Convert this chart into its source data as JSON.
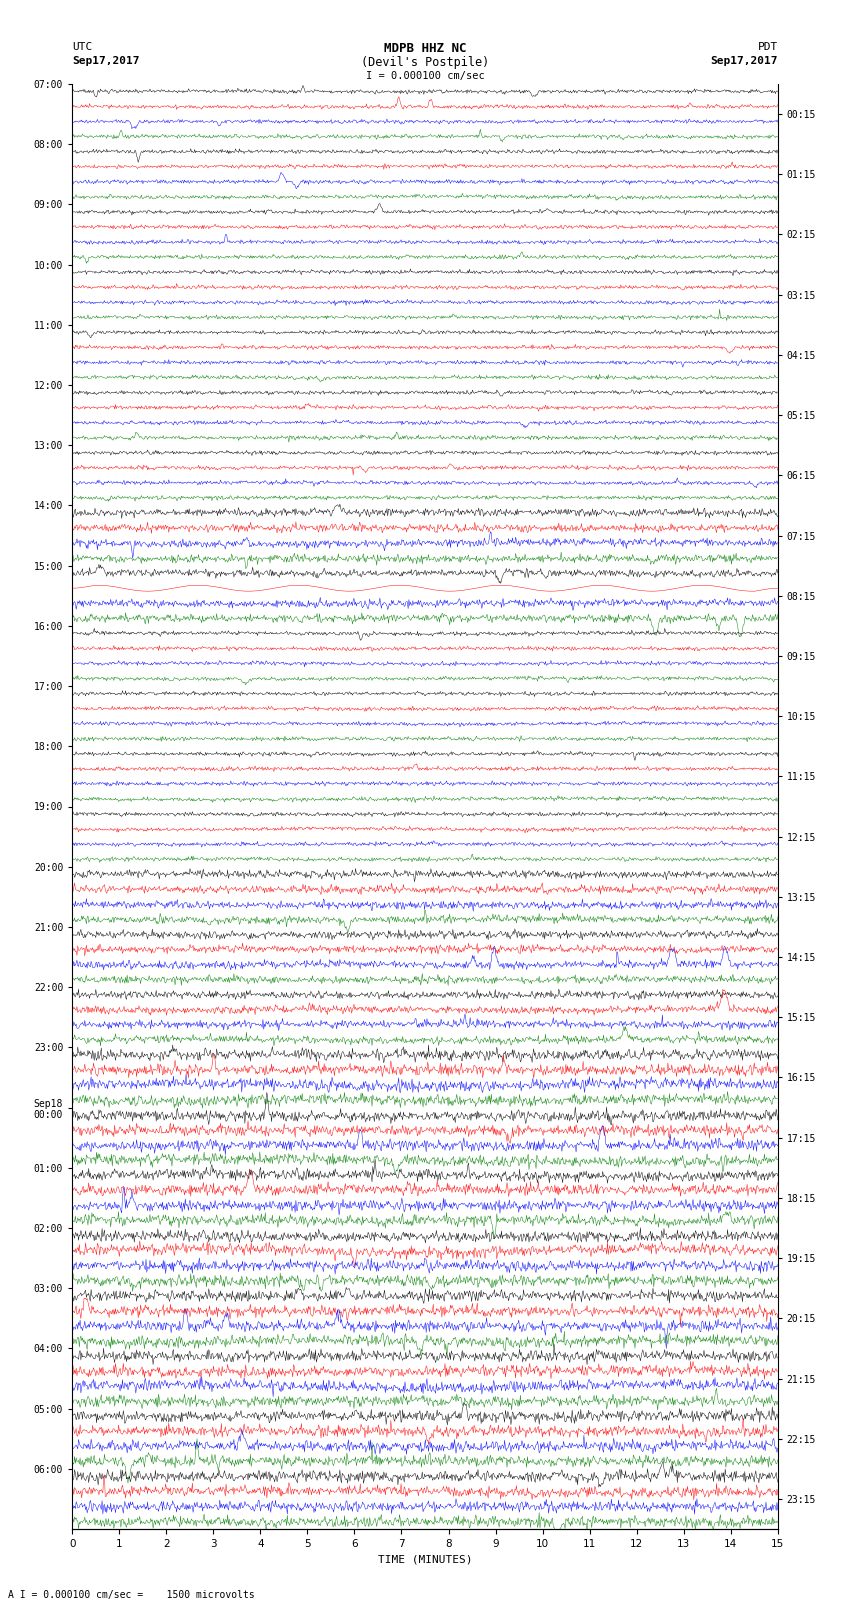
{
  "title_line1": "MDPB HHZ NC",
  "title_line2": "(Devil's Postpile)",
  "scale_label": "I = 0.000100 cm/sec",
  "left_label_top": "UTC",
  "left_label_date": "Sep17,2017",
  "right_label_top": "PDT",
  "right_label_date": "Sep17,2017",
  "bottom_label": "TIME (MINUTES)",
  "bottom_note": "A I = 0.000100 cm/sec =    1500 microvolts",
  "fig_width": 8.5,
  "fig_height": 16.13,
  "dpi": 100,
  "plot_bg": "#ffffff",
  "left_times_utc": [
    "07:00",
    "08:00",
    "09:00",
    "10:00",
    "11:00",
    "12:00",
    "13:00",
    "14:00",
    "15:00",
    "16:00",
    "17:00",
    "18:00",
    "19:00",
    "20:00",
    "21:00",
    "22:00",
    "23:00",
    "Sep18\n00:00",
    "01:00",
    "02:00",
    "03:00",
    "04:00",
    "05:00",
    "06:00"
  ],
  "right_times_pdt": [
    "00:15",
    "01:15",
    "02:15",
    "03:15",
    "04:15",
    "05:15",
    "06:15",
    "07:15",
    "08:15",
    "09:15",
    "10:15",
    "11:15",
    "12:15",
    "13:15",
    "14:15",
    "15:15",
    "16:15",
    "17:15",
    "18:15",
    "19:15",
    "20:15",
    "21:15",
    "22:15",
    "23:15"
  ],
  "colors": [
    "#000000",
    "#ff0000",
    "#0000ff",
    "#008000"
  ],
  "n_rows": 24,
  "traces_per_row": 4,
  "n_points": 900,
  "x_ticks": [
    0,
    1,
    2,
    3,
    4,
    5,
    6,
    7,
    8,
    9,
    10,
    11,
    12,
    13,
    14,
    15
  ],
  "x_lim": [
    0,
    15
  ],
  "high_activity_rows": [
    16,
    17,
    18,
    19,
    20,
    21,
    22,
    23
  ],
  "medium_activity_rows": [
    7,
    8,
    13,
    14,
    15
  ]
}
